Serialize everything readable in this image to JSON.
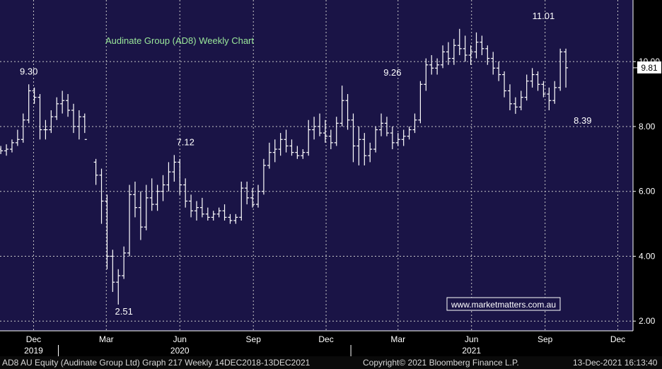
{
  "chart_data": {
    "type": "ohlc",
    "title": "Audinate Group (AD8) Weekly Chart",
    "website": "www.marketmatters.com.au",
    "last_price_label": "9.81",
    "last_price": 9.81,
    "y_ticks": [
      "2.00",
      "4.00",
      "6.00",
      "8.00",
      "10.00"
    ],
    "y_tick_values": [
      2,
      4,
      6,
      8,
      10
    ],
    "ylim": [
      1.7,
      11.9
    ],
    "x_month_labels": [
      "Dec",
      "Mar",
      "Jun",
      "Sep",
      "Dec",
      "Mar",
      "Jun",
      "Sep",
      "Dec"
    ],
    "x_month_dates": [
      "2019-12-01",
      "2020-03-01",
      "2020-06-01",
      "2020-09-01",
      "2020-12-01",
      "2021-03-01",
      "2021-06-01",
      "2021-09-01",
      "2021-12-01"
    ],
    "x_year_labels": [
      "2019",
      "2020",
      "2021"
    ],
    "x_year_dates": [
      "2019-12-01",
      "2020-06-01",
      "2021-06-01"
    ],
    "x_range": [
      "2019-10-20",
      "2021-12-20"
    ],
    "annotations": [
      {
        "text": "9.30",
        "date": "2019-11-25",
        "value": 9.3
      },
      {
        "text": "2.51",
        "date": "2020-03-23",
        "value": 2.51
      },
      {
        "text": "7.12",
        "date": "2020-06-08",
        "value": 7.12
      },
      {
        "text": "9.26",
        "date": "2021-02-22",
        "value": 9.26
      },
      {
        "text": "11.01",
        "date": "2021-08-30",
        "value": 11.01
      },
      {
        "text": "8.39",
        "date": "2021-10-18",
        "value": 8.39
      }
    ],
    "bars": [
      [
        "2019-10-21",
        7.3,
        7.4,
        7.15,
        7.25
      ],
      [
        "2019-10-28",
        7.25,
        7.45,
        7.1,
        7.3
      ],
      [
        "2019-11-04",
        7.3,
        7.6,
        7.2,
        7.5
      ],
      [
        "2019-11-11",
        7.5,
        7.9,
        7.4,
        7.6
      ],
      [
        "2019-11-18",
        7.6,
        8.4,
        7.5,
        8.2
      ],
      [
        "2019-11-25",
        8.2,
        9.3,
        8.1,
        9.1
      ],
      [
        "2019-12-02",
        9.1,
        9.2,
        8.7,
        8.9
      ],
      [
        "2019-12-09",
        8.9,
        9.0,
        7.6,
        7.9
      ],
      [
        "2019-12-16",
        7.9,
        8.2,
        7.6,
        7.9
      ],
      [
        "2019-12-23",
        7.9,
        8.5,
        7.8,
        8.3
      ],
      [
        "2019-12-30",
        8.3,
        8.9,
        8.2,
        8.7
      ],
      [
        "2020-01-06",
        8.7,
        9.1,
        8.4,
        8.8
      ],
      [
        "2020-01-13",
        8.8,
        9.0,
        8.3,
        8.5
      ],
      [
        "2020-01-20",
        8.5,
        8.7,
        7.8,
        8.0
      ],
      [
        "2020-01-27",
        8.0,
        8.5,
        7.6,
        8.3
      ],
      [
        "2020-02-03",
        8.3,
        8.4,
        7.8,
        7.6
      ],
      [
        "2020-02-17",
        6.9,
        7.0,
        6.2,
        6.5
      ],
      [
        "2020-02-24",
        6.5,
        6.7,
        5.0,
        5.7
      ],
      [
        "2020-03-02",
        5.7,
        5.9,
        3.6,
        4.0
      ],
      [
        "2020-03-09",
        4.0,
        4.2,
        2.9,
        3.2
      ],
      [
        "2020-03-16",
        3.2,
        3.6,
        2.51,
        3.4
      ],
      [
        "2020-03-23",
        3.4,
        4.3,
        3.3,
        4.1
      ],
      [
        "2020-03-30",
        4.1,
        6.2,
        4.0,
        5.9
      ],
      [
        "2020-04-06",
        5.9,
        6.3,
        5.2,
        5.5
      ],
      [
        "2020-04-13",
        5.5,
        6.0,
        4.5,
        4.9
      ],
      [
        "2020-04-20",
        4.9,
        6.2,
        4.8,
        5.8
      ],
      [
        "2020-04-27",
        5.8,
        6.4,
        5.4,
        5.6
      ],
      [
        "2020-05-04",
        5.6,
        6.2,
        5.4,
        6.0
      ],
      [
        "2020-05-11",
        6.0,
        6.5,
        5.7,
        6.2
      ],
      [
        "2020-05-18",
        6.2,
        6.9,
        6.0,
        6.6
      ],
      [
        "2020-05-25",
        6.6,
        7.12,
        6.3,
        6.9
      ],
      [
        "2020-06-01",
        6.9,
        7.0,
        5.9,
        6.2
      ],
      [
        "2020-06-08",
        6.2,
        6.4,
        5.5,
        5.7
      ],
      [
        "2020-06-15",
        5.7,
        5.9,
        5.2,
        5.4
      ],
      [
        "2020-06-22",
        5.4,
        5.7,
        5.1,
        5.5
      ],
      [
        "2020-06-29",
        5.5,
        5.8,
        5.2,
        5.3
      ],
      [
        "2020-07-06",
        5.3,
        5.5,
        5.1,
        5.2
      ],
      [
        "2020-07-13",
        5.2,
        5.4,
        5.1,
        5.3
      ],
      [
        "2020-07-20",
        5.3,
        5.5,
        5.2,
        5.4
      ],
      [
        "2020-07-27",
        5.4,
        5.6,
        5.1,
        5.2
      ],
      [
        "2020-08-03",
        5.2,
        5.3,
        5.0,
        5.1
      ],
      [
        "2020-08-10",
        5.1,
        5.3,
        5.0,
        5.2
      ],
      [
        "2020-08-17",
        5.2,
        6.3,
        5.1,
        6.1
      ],
      [
        "2020-08-24",
        6.1,
        6.3,
        5.6,
        5.8
      ],
      [
        "2020-08-31",
        5.8,
        6.1,
        5.5,
        5.6
      ],
      [
        "2020-09-07",
        5.6,
        6.2,
        5.5,
        6.0
      ],
      [
        "2020-09-14",
        6.0,
        7.0,
        5.9,
        6.8
      ],
      [
        "2020-09-21",
        6.8,
        7.5,
        6.7,
        7.2
      ],
      [
        "2020-09-28",
        7.2,
        7.6,
        6.9,
        7.3
      ],
      [
        "2020-10-05",
        7.3,
        7.8,
        7.1,
        7.6
      ],
      [
        "2020-10-12",
        7.6,
        7.9,
        7.2,
        7.4
      ],
      [
        "2020-10-19",
        7.4,
        7.6,
        7.1,
        7.2
      ],
      [
        "2020-10-26",
        7.2,
        7.4,
        7.0,
        7.1
      ],
      [
        "2020-11-02",
        7.1,
        7.3,
        7.0,
        7.2
      ],
      [
        "2020-11-09",
        7.2,
        8.2,
        7.1,
        7.9
      ],
      [
        "2020-11-16",
        7.9,
        8.3,
        7.6,
        8.0
      ],
      [
        "2020-11-23",
        8.0,
        8.4,
        7.7,
        7.8
      ],
      [
        "2020-11-30",
        7.8,
        8.2,
        7.5,
        7.7
      ],
      [
        "2020-12-07",
        7.7,
        7.9,
        7.3,
        7.5
      ],
      [
        "2020-12-14",
        7.5,
        8.3,
        7.4,
        8.1
      ],
      [
        "2020-12-21",
        8.1,
        9.26,
        8.0,
        8.8
      ],
      [
        "2020-12-28",
        8.8,
        9.0,
        7.9,
        8.2
      ],
      [
        "2021-01-04",
        8.2,
        8.4,
        6.9,
        7.4
      ],
      [
        "2021-01-11",
        7.4,
        8.0,
        6.8,
        7.6
      ],
      [
        "2021-01-18",
        7.6,
        7.8,
        6.8,
        7.1
      ],
      [
        "2021-01-25",
        7.1,
        7.5,
        6.9,
        7.3
      ],
      [
        "2021-02-01",
        7.3,
        8.0,
        7.2,
        7.9
      ],
      [
        "2021-02-08",
        7.9,
        8.4,
        7.7,
        8.1
      ],
      [
        "2021-02-15",
        8.1,
        8.3,
        7.7,
        7.8
      ],
      [
        "2021-02-22",
        7.8,
        8.0,
        7.3,
        7.5
      ],
      [
        "2021-03-01",
        7.5,
        7.8,
        7.4,
        7.6
      ],
      [
        "2021-03-08",
        7.6,
        7.9,
        7.4,
        7.7
      ],
      [
        "2021-03-15",
        7.7,
        8.0,
        7.6,
        7.9
      ],
      [
        "2021-03-22",
        7.9,
        8.4,
        7.8,
        8.2
      ],
      [
        "2021-03-29",
        8.2,
        9.4,
        8.1,
        9.3
      ],
      [
        "2021-04-05",
        9.3,
        10.1,
        9.1,
        9.9
      ],
      [
        "2021-04-12",
        9.9,
        10.2,
        9.6,
        9.8
      ],
      [
        "2021-04-19",
        9.8,
        10.1,
        9.6,
        9.9
      ],
      [
        "2021-04-26",
        9.9,
        10.5,
        9.8,
        10.3
      ],
      [
        "2021-05-03",
        10.3,
        10.6,
        9.9,
        10.1
      ],
      [
        "2021-05-10",
        10.1,
        10.7,
        9.9,
        10.5
      ],
      [
        "2021-05-17",
        10.5,
        11.01,
        10.2,
        10.4
      ],
      [
        "2021-05-24",
        10.4,
        10.8,
        10.0,
        10.2
      ],
      [
        "2021-05-31",
        10.2,
        10.5,
        9.9,
        10.3
      ],
      [
        "2021-06-07",
        10.3,
        10.9,
        10.1,
        10.6
      ],
      [
        "2021-06-14",
        10.6,
        10.8,
        10.2,
        10.4
      ],
      [
        "2021-06-21",
        10.4,
        10.5,
        9.9,
        10.1
      ],
      [
        "2021-06-28",
        10.1,
        10.3,
        9.6,
        9.8
      ],
      [
        "2021-07-05",
        9.8,
        10.0,
        9.4,
        9.6
      ],
      [
        "2021-07-12",
        9.6,
        9.7,
        8.9,
        9.1
      ],
      [
        "2021-07-19",
        9.1,
        9.3,
        8.5,
        8.7
      ],
      [
        "2021-07-26",
        8.7,
        8.9,
        8.39,
        8.6
      ],
      [
        "2021-08-02",
        8.6,
        9.1,
        8.5,
        8.9
      ],
      [
        "2021-08-09",
        8.9,
        9.6,
        8.8,
        9.4
      ],
      [
        "2021-08-16",
        9.4,
        9.8,
        9.2,
        9.6
      ],
      [
        "2021-08-23",
        9.6,
        9.7,
        9.1,
        9.3
      ],
      [
        "2021-08-30",
        9.3,
        9.4,
        8.9,
        9.0
      ],
      [
        "2021-09-06",
        9.0,
        9.2,
        8.5,
        8.8
      ],
      [
        "2021-09-13",
        8.8,
        9.4,
        8.7,
        9.2
      ],
      [
        "2021-09-20",
        9.2,
        10.4,
        9.1,
        10.3
      ],
      [
        "2021-09-27",
        10.3,
        10.4,
        9.2,
        9.81
      ]
    ]
  },
  "footer": {
    "left": "AD8 AU Equity (Audinate Group Ltd) Graph 217  Weekly 14DEC2018-13DEC2021",
    "center": "Copyright© 2021 Bloomberg Finance L.P.",
    "right": "13-Dec-2021 16:13:40"
  }
}
